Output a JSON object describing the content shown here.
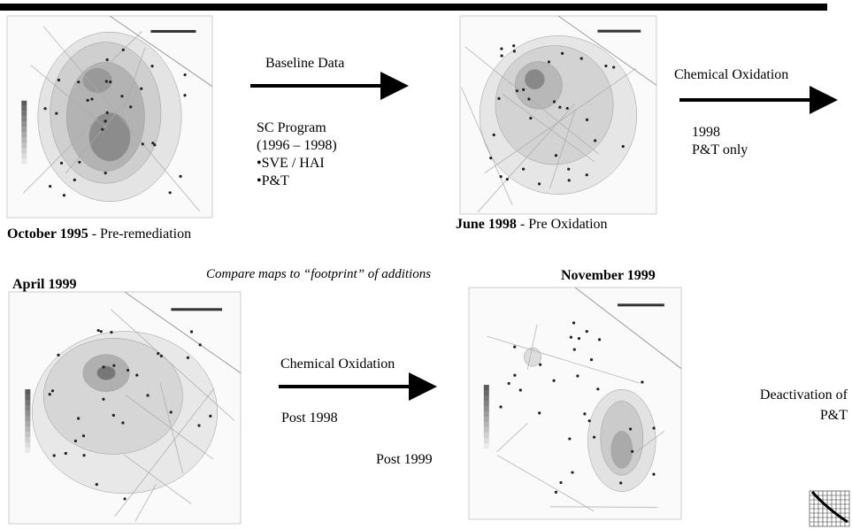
{
  "maps": [
    {
      "title": "October 1995",
      "subtitle": "- Pre-remediation"
    },
    {
      "title": "June 1998",
      "subtitle": "- Pre Oxidation"
    },
    {
      "title": "April 1999"
    },
    {
      "title": "November 1999"
    }
  ],
  "arrows": [
    {
      "label": "Baseline Data"
    },
    {
      "label": "Chemical Oxidation"
    },
    {
      "label": "Chemical Oxidation"
    }
  ],
  "notes": {
    "sc_program": [
      "SC Program",
      "(1996 – 1998)",
      "•SVE / HAI",
      "•P&T"
    ],
    "pt_only": [
      "1998",
      "P&T only"
    ],
    "post_1998": "Post 1998",
    "post_1999": "Post 1999",
    "deactivation": [
      "Deactivation of",
      "P&T"
    ],
    "compare": "Compare maps to “footprint” of additions"
  }
}
